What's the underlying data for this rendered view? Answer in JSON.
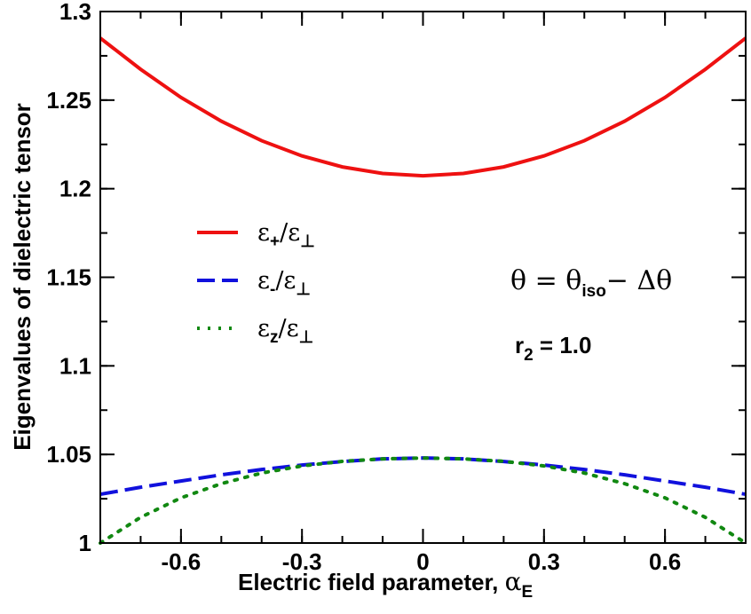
{
  "chart_data": {
    "type": "line",
    "title": "",
    "xlabel": "Electric field parameter, ",
    "xlabel_symbol": "α",
    "xlabel_subscript": "E",
    "ylabel": "Eigenvalues of dielectric tensor",
    "xlim": [
      -0.8,
      0.8
    ],
    "ylim": [
      1.0,
      1.3
    ],
    "xticks": [
      -0.6,
      -0.3,
      0,
      0.3,
      0.6
    ],
    "xtick_labels": [
      "-0.6",
      "-0.3",
      "0",
      "0.3",
      "0.6"
    ],
    "yticks": [
      1.0,
      1.05,
      1.1,
      1.15,
      1.2,
      1.25,
      1.3
    ],
    "ytick_labels": [
      "1",
      "1.05",
      "1.1",
      "1.15",
      "1.2",
      "1.25",
      "1.3"
    ],
    "grid": false,
    "legend_position": "center-left",
    "series": [
      {
        "name": "ε+/ε⊥",
        "legend": {
          "base": "ε",
          "sub": "+",
          "mid": "/ε",
          "sub2": "⊥"
        },
        "color": "#ee1111",
        "style": "solid",
        "x": [
          -0.8,
          -0.7,
          -0.6,
          -0.5,
          -0.4,
          -0.3,
          -0.2,
          -0.1,
          0,
          0.1,
          0.2,
          0.3,
          0.4,
          0.5,
          0.6,
          0.7,
          0.8
        ],
        "y": [
          1.285,
          1.2674,
          1.2515,
          1.2381,
          1.2271,
          1.2185,
          1.2123,
          1.2086,
          1.2073,
          1.2086,
          1.2123,
          1.2185,
          1.2271,
          1.2381,
          1.2515,
          1.2674,
          1.285
        ]
      },
      {
        "name": "ε-/ε⊥",
        "legend": {
          "base": "ε",
          "sub": "-",
          "mid": "/ε",
          "sub2": "⊥"
        },
        "color": "#1111dd",
        "style": "dashed",
        "x": [
          -0.8,
          -0.7,
          -0.6,
          -0.5,
          -0.4,
          -0.3,
          -0.2,
          -0.1,
          0,
          0.1,
          0.2,
          0.3,
          0.4,
          0.5,
          0.6,
          0.7,
          0.8
        ],
        "y": [
          1.0275,
          1.0315,
          1.035,
          1.0385,
          1.0415,
          1.044,
          1.046,
          1.0475,
          1.048,
          1.0475,
          1.046,
          1.044,
          1.0415,
          1.0385,
          1.035,
          1.0315,
          1.0275
        ]
      },
      {
        "name": "εz/ε⊥",
        "legend": {
          "base": "ε",
          "sub": "z",
          "mid": "/ε",
          "sub2": "⊥"
        },
        "color": "#118811",
        "style": "dotted",
        "x": [
          -0.8,
          -0.7,
          -0.6,
          -0.5,
          -0.4,
          -0.3,
          -0.2,
          -0.1,
          0,
          0.1,
          0.2,
          0.3,
          0.4,
          0.5,
          0.6,
          0.7,
          0.8
        ],
        "y": [
          1.0,
          1.0145,
          1.0255,
          1.0335,
          1.0395,
          1.0435,
          1.0461,
          1.0475,
          1.048,
          1.0475,
          1.0461,
          1.0435,
          1.0395,
          1.0335,
          1.0255,
          1.0145,
          1.0
        ]
      }
    ],
    "annotations": {
      "theta": {
        "lhs": "θ = θ",
        "sub": "iso",
        "rhs": "− Δθ"
      },
      "r2": {
        "base": "r",
        "sub": "2",
        "rest": " = 1.0"
      }
    }
  }
}
